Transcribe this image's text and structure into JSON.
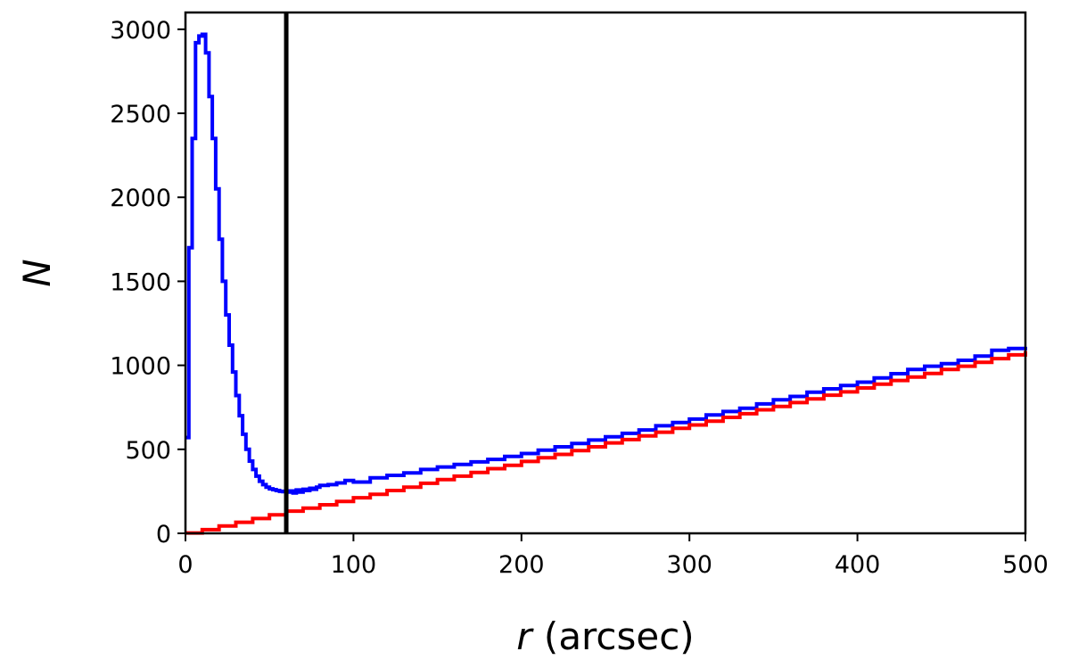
{
  "chart_data": {
    "type": "line",
    "title": "",
    "xlabel_italic": "r",
    "xlabel_rest": " (arcsec)",
    "ylabel": "N",
    "xlim": [
      0,
      500
    ],
    "ylim": [
      0,
      3100
    ],
    "xticks": [
      0,
      100,
      200,
      300,
      400,
      500
    ],
    "yticks": [
      0,
      500,
      1000,
      1500,
      2000,
      2500,
      3000
    ],
    "grid": false,
    "vline": {
      "x": 60,
      "color": "#000000"
    },
    "series": [
      {
        "color": "#0000ff",
        "x": [
          0,
          2,
          4,
          6,
          8,
          10,
          12,
          14,
          16,
          18,
          20,
          22,
          24,
          26,
          28,
          30,
          32,
          34,
          36,
          38,
          40,
          42,
          44,
          46,
          48,
          50,
          52,
          54,
          56,
          58,
          60,
          62,
          64,
          66,
          68,
          70,
          72,
          74,
          76,
          78,
          80,
          85,
          90,
          95,
          100,
          110,
          120,
          130,
          140,
          150,
          160,
          170,
          180,
          190,
          200,
          210,
          220,
          230,
          240,
          250,
          260,
          270,
          280,
          290,
          300,
          310,
          320,
          330,
          340,
          350,
          360,
          370,
          380,
          390,
          400,
          410,
          420,
          430,
          440,
          450,
          460,
          470,
          480,
          490,
          500
        ],
        "values": [
          570,
          1700,
          2350,
          2920,
          2960,
          2970,
          2860,
          2600,
          2350,
          2050,
          1750,
          1500,
          1300,
          1120,
          960,
          820,
          700,
          590,
          500,
          430,
          380,
          340,
          310,
          290,
          275,
          265,
          260,
          255,
          250,
          248,
          245,
          252,
          240,
          258,
          246,
          262,
          255,
          268,
          262,
          275,
          285,
          290,
          300,
          315,
          305,
          330,
          345,
          360,
          380,
          395,
          410,
          425,
          440,
          458,
          475,
          495,
          515,
          535,
          555,
          575,
          595,
          615,
          640,
          660,
          680,
          705,
          725,
          745,
          770,
          795,
          815,
          840,
          860,
          880,
          900,
          925,
          950,
          975,
          995,
          1010,
          1030,
          1055,
          1090,
          1100,
          1110
        ]
      },
      {
        "color": "#ff0000",
        "x": [
          0,
          10,
          20,
          30,
          40,
          50,
          60,
          70,
          80,
          90,
          100,
          110,
          120,
          130,
          140,
          150,
          160,
          170,
          180,
          190,
          200,
          210,
          220,
          230,
          240,
          250,
          260,
          270,
          280,
          290,
          300,
          310,
          320,
          330,
          340,
          350,
          360,
          370,
          380,
          390,
          400,
          410,
          420,
          430,
          440,
          450,
          460,
          470,
          480,
          490,
          500
        ],
        "values": [
          2,
          22,
          44,
          66,
          88,
          110,
          132,
          150,
          170,
          190,
          212,
          232,
          255,
          275,
          298,
          320,
          340,
          362,
          385,
          405,
          428,
          450,
          470,
          492,
          515,
          538,
          558,
          580,
          602,
          625,
          645,
          668,
          690,
          712,
          735,
          755,
          778,
          800,
          822,
          842,
          865,
          888,
          910,
          930,
          952,
          975,
          995,
          1018,
          1040,
          1062,
          1085
        ]
      }
    ]
  }
}
